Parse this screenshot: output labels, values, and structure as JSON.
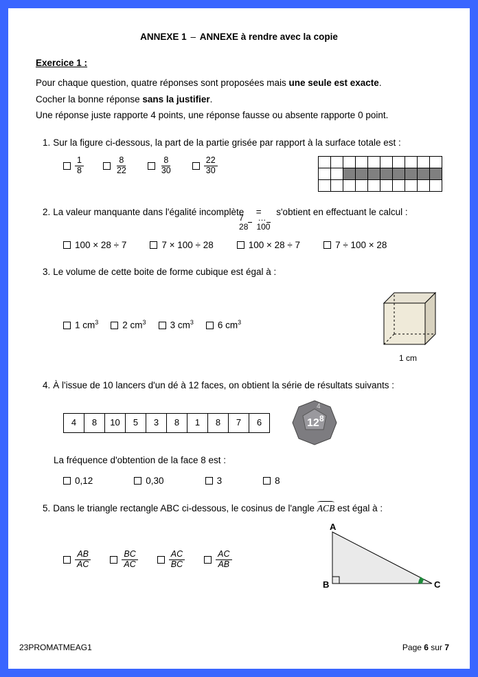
{
  "title_a": "ANNEXE 1",
  "title_b": "ANNEXE à rendre avec la copie",
  "exercise_label": "Exercice 1 :",
  "intro_l1_a": "Pour chaque question, quatre réponses sont proposées mais ",
  "intro_l1_b": "une seule est exacte",
  "intro_l1_c": ".",
  "intro_l2_a": "Cocher la bonne réponse ",
  "intro_l2_b": "sans la justifier",
  "intro_l2_c": ".",
  "intro_l3": "Une réponse juste rapporte 4 points, une réponse fausse ou absente rapporte 0 point.",
  "q1": {
    "num": "1.",
    "text": "Sur la figure ci-dessous, la part de la partie grisée par rapport à la surface totale est :",
    "opts": [
      {
        "n": "1",
        "d": "8"
      },
      {
        "n": "8",
        "d": "22"
      },
      {
        "n": "8",
        "d": "30"
      },
      {
        "n": "22",
        "d": "30"
      }
    ],
    "grid_rows": 3,
    "grid_cols": 10,
    "grid_shaded_row": 1,
    "grid_shaded_from": 2,
    "grid_shaded_to": 9
  },
  "q2": {
    "num": "2.",
    "text_a": "La valeur manquante dans l'égalité incomplète ",
    "frac1": {
      "n": "7",
      "d": "28"
    },
    "eq": " = ",
    "frac2": {
      "n": "…",
      "d": "100"
    },
    "text_b": " s'obtient en effectuant le calcul :",
    "opts": [
      "100 × 28 ÷ 7",
      "7 × 100 ÷ 28",
      "100 × 28 ÷ 7",
      "7 ÷ 100 × 28"
    ]
  },
  "q3": {
    "num": "3.",
    "text": "Le volume de cette boite de forme cubique est égal à :",
    "opts": [
      "1 cm",
      "2 cm",
      "3 cm",
      "6 cm"
    ],
    "cube_label": "1 cm"
  },
  "q4": {
    "num": "4.",
    "text": "À l'issue de 10 lancers d'un dé à 12 faces, on obtient la série de résultats suivants :",
    "results": [
      "4",
      "8",
      "10",
      "5",
      "3",
      "8",
      "1",
      "8",
      "7",
      "6"
    ],
    "subtext": "La fréquence d'obtention de la face 8 est :",
    "opts": [
      "0,12",
      "0,30",
      "3",
      "8"
    ]
  },
  "q5": {
    "num": "5.",
    "text_a": "Dans le triangle rectangle ABC ci-dessous, le cosinus de l'angle ",
    "angle": "ACB",
    "text_b": " est égal à :",
    "opts": [
      {
        "n": "AB",
        "d": "AC"
      },
      {
        "n": "BC",
        "d": "AC"
      },
      {
        "n": "AC",
        "d": "BC"
      },
      {
        "n": "AC",
        "d": "AB"
      }
    ]
  },
  "footer_left": "23PROMATMEAG1",
  "footer_page_a": "Page ",
  "footer_page_b": "6",
  "footer_page_c": " sur ",
  "footer_page_d": "7"
}
